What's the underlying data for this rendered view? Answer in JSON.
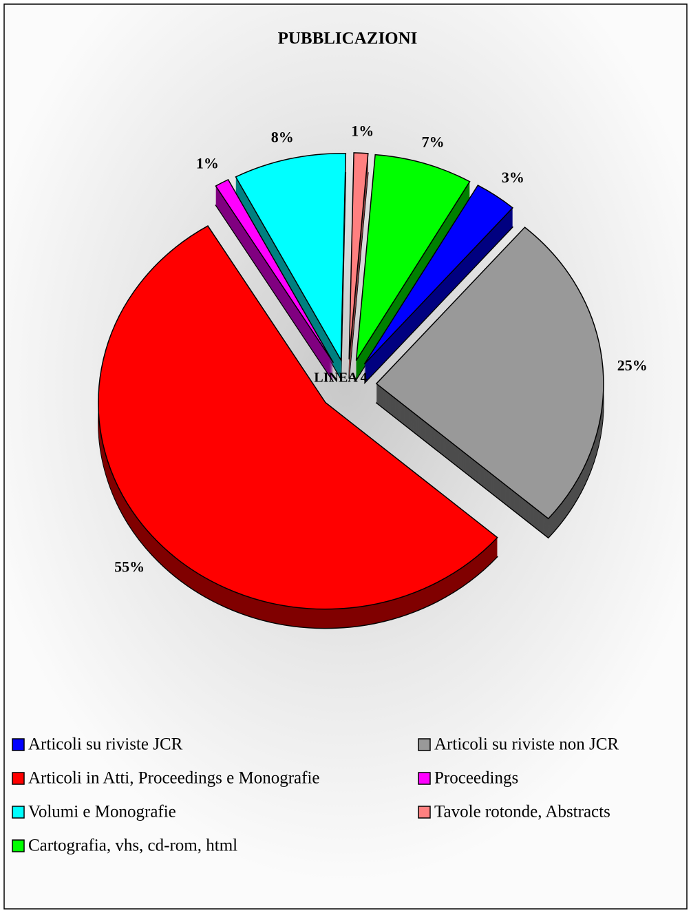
{
  "chart_data": {
    "type": "pie",
    "title": "PUBBLICAZIONI",
    "annotation": "LINEA 4",
    "categories": [
      "Articoli su riviste JCR",
      "Articoli su riviste non JCR",
      "Articoli in Atti, Proceedings e Monografie",
      "Proceedings",
      "Volumi e Monografie",
      "Tavole rotonde, Abstracts",
      "Cartografia, vhs, cd-rom, html"
    ],
    "values": [
      3,
      25,
      55,
      1,
      8,
      1,
      7
    ],
    "value_labels": [
      "3%",
      "25%",
      "55%",
      "1%",
      "8%",
      "1%",
      "7%"
    ],
    "colors": [
      "#0000ff",
      "#999999",
      "#ff0000",
      "#ff00ff",
      "#00ffff",
      "#ff8080",
      "#00ff00"
    ]
  }
}
